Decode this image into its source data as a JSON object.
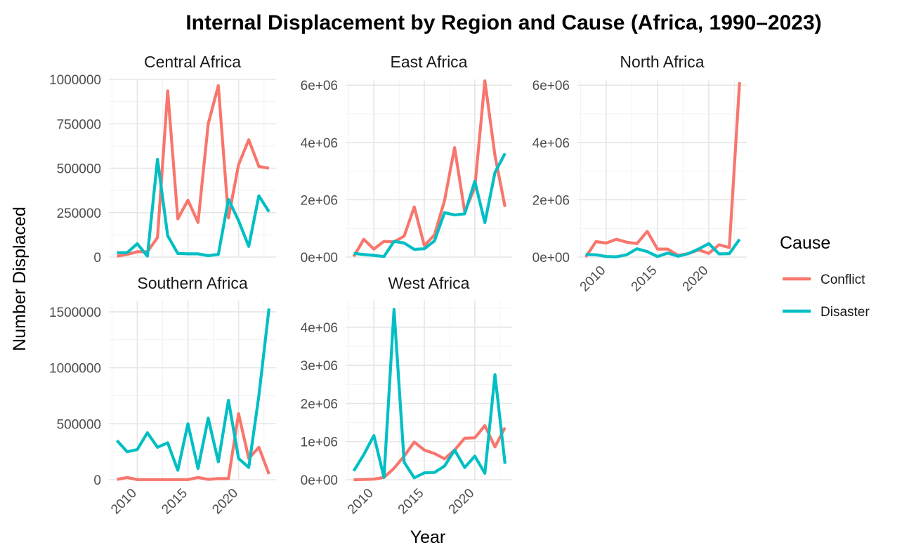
{
  "chart_data": {
    "type": "line",
    "title": "Internal Displacement by Region and Cause (Africa, 1990–2023)",
    "xlabel": "Year",
    "ylabel": "Number Displaced",
    "legend": {
      "title": "Cause",
      "position": "right"
    },
    "grid": true,
    "series_colors": {
      "Conflict": "#F8766D",
      "Disaster": "#00BFC4"
    },
    "years": [
      2008,
      2009,
      2010,
      2011,
      2012,
      2013,
      2014,
      2015,
      2016,
      2017,
      2018,
      2019,
      2020,
      2021,
      2022,
      2023
    ],
    "x_ticks": [
      2010,
      2015,
      2020
    ],
    "facets": [
      {
        "region": "Central Africa",
        "ylim": [
          0,
          1000000
        ],
        "y_ticks": [
          0,
          250000,
          500000,
          750000,
          1000000
        ],
        "y_tick_labels": [
          "0",
          "250000",
          "500000",
          "750000",
          "1000000"
        ],
        "series": [
          {
            "name": "Conflict",
            "values": [
              5000,
              15000,
              30000,
              30000,
              110000,
              935000,
              215000,
              320000,
              195000,
              750000,
              965000,
              220000,
              520000,
              660000,
              510000,
              500000
            ]
          },
          {
            "name": "Disaster",
            "values": [
              25000,
              25000,
              75000,
              5000,
              550000,
              120000,
              20000,
              18000,
              18000,
              8000,
              15000,
              325000,
              205000,
              60000,
              345000,
              255000
            ]
          }
        ]
      },
      {
        "region": "East Africa",
        "ylim": [
          0,
          6200000
        ],
        "y_ticks": [
          0,
          2000000,
          4000000,
          6000000
        ],
        "y_tick_labels": [
          "0e+00",
          "2e+06",
          "4e+06",
          "6e+06"
        ],
        "series": [
          {
            "name": "Conflict",
            "values": [
              20000,
              620000,
              280000,
              550000,
              530000,
              730000,
              1750000,
              400000,
              770000,
              1970000,
              3820000,
              1580000,
              2420000,
              6150000,
              3540000,
              1750000
            ]
          },
          {
            "name": "Disaster",
            "values": [
              130000,
              90000,
              60000,
              20000,
              550000,
              490000,
              270000,
              290000,
              560000,
              1550000,
              1470000,
              1510000,
              2650000,
              1200000,
              2950000,
              3620000
            ]
          }
        ]
      },
      {
        "region": "North Africa",
        "ylim": [
          0,
          6200000
        ],
        "y_ticks": [
          0,
          2000000,
          4000000,
          6000000
        ],
        "y_tick_labels": [
          "0e+00",
          "2e+06",
          "4e+06",
          "6e+06"
        ],
        "series": [
          {
            "name": "Conflict",
            "values": [
              0,
              540000,
              490000,
              620000,
              520000,
              470000,
              900000,
              280000,
              280000,
              60000,
              120000,
              250000,
              130000,
              430000,
              330000,
              6100000
            ]
          },
          {
            "name": "Disaster",
            "values": [
              90000,
              80000,
              20000,
              10000,
              80000,
              290000,
              190000,
              20000,
              140000,
              30000,
              120000,
              280000,
              470000,
              110000,
              120000,
              620000
            ]
          }
        ]
      },
      {
        "region": "Southern Africa",
        "ylim": [
          0,
          1600000
        ],
        "y_ticks": [
          0,
          500000,
          1000000,
          1500000
        ],
        "y_tick_labels": [
          "0",
          "500000",
          "1000000",
          "1500000"
        ],
        "series": [
          {
            "name": "Conflict",
            "values": [
              3000,
              20000,
              1000,
              1000,
              1000,
              1000,
              1000,
              1000,
              20000,
              3000,
              10000,
              10000,
              590000,
              190000,
              290000,
              50000
            ]
          },
          {
            "name": "Disaster",
            "values": [
              350000,
              250000,
              270000,
              420000,
              290000,
              330000,
              85000,
              500000,
              100000,
              550000,
              160000,
              710000,
              190000,
              110000,
              750000,
              1530000
            ]
          }
        ]
      },
      {
        "region": "West Africa",
        "ylim": [
          0,
          4700000
        ],
        "y_ticks": [
          0,
          1000000,
          2000000,
          3000000,
          4000000
        ],
        "y_tick_labels": [
          "0e+00",
          "1e+06",
          "2e+06",
          "3e+06",
          "4e+06"
        ],
        "series": [
          {
            "name": "Conflict",
            "values": [
              0,
              5000,
              15000,
              60000,
              300000,
              620000,
              990000,
              780000,
              690000,
              550000,
              780000,
              1090000,
              1100000,
              1420000,
              860000,
              1370000
            ]
          },
          {
            "name": "Disaster",
            "values": [
              230000,
              660000,
              1160000,
              60000,
              4470000,
              460000,
              50000,
              180000,
              190000,
              360000,
              780000,
              320000,
              620000,
              170000,
              2760000,
              420000
            ]
          }
        ]
      }
    ]
  }
}
